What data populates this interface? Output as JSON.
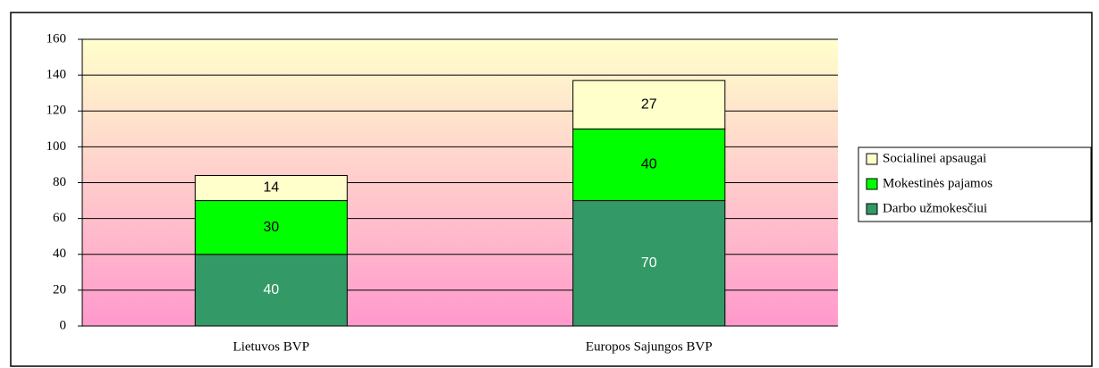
{
  "chart_data": {
    "type": "stacked_bar",
    "categories": [
      "Lietuvos BVP",
      "Europos Sajungos BVP"
    ],
    "series": [
      {
        "name": "Darbo užmokesčiui",
        "color": "#339966",
        "values": [
          40,
          70
        ]
      },
      {
        "name": "Mokestinės pajamos",
        "color": "#00ff00",
        "values": [
          30,
          40
        ]
      },
      {
        "name": "Socialinei apsaugai",
        "color": "#ffffcc",
        "values": [
          14,
          27
        ]
      }
    ],
    "ylim": [
      0,
      160
    ],
    "yticks": [
      0,
      20,
      40,
      60,
      80,
      100,
      120,
      140,
      160
    ],
    "grid": true,
    "legend": "right"
  }
}
